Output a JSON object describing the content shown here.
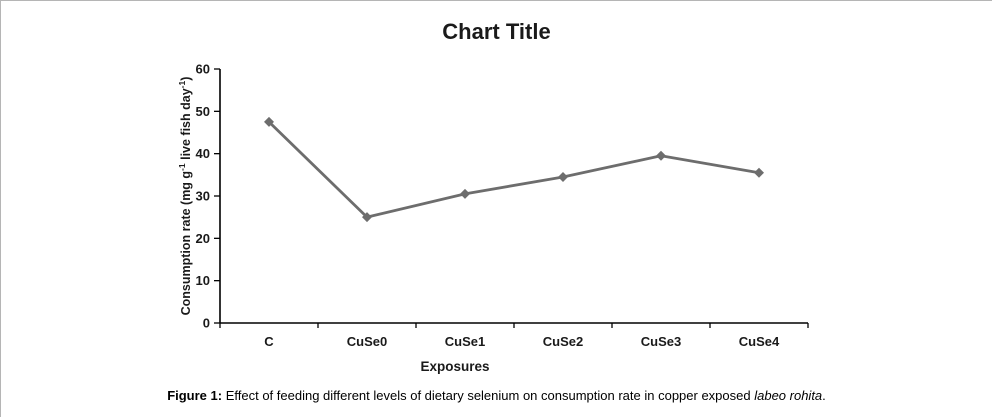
{
  "chart_data": {
    "type": "line",
    "title": "Chart Title",
    "categories": [
      "C",
      "CuSe0",
      "CuSe1",
      "CuSe2",
      "CuSe3",
      "CuSe4"
    ],
    "values": [
      47.5,
      25,
      30.5,
      34.5,
      39.5,
      35.5
    ],
    "xlabel": "Exposures",
    "ylabel": "Consumption rate (mg g-1 live fish day-1)",
    "ylabel_rich": {
      "p1": "Consumption rate (mg g",
      "sup1": "-1",
      "p2": " live fish day",
      "sup2": "-1",
      "p3": ")"
    },
    "ylim": [
      0,
      60
    ],
    "yticks": [
      0,
      10,
      20,
      30,
      40,
      50,
      60
    ],
    "grid": false,
    "legend": "none",
    "marker": "diamond",
    "colors": {
      "line": "#6d6d6d",
      "axis": "#000000",
      "text": "#1a1a1a"
    }
  },
  "caption": {
    "prefix": "Figure 1:",
    "body": " Effect of feeding different levels of dietary selenium on consumption rate in copper exposed ",
    "species": "labeo rohita",
    "suffix": "."
  }
}
